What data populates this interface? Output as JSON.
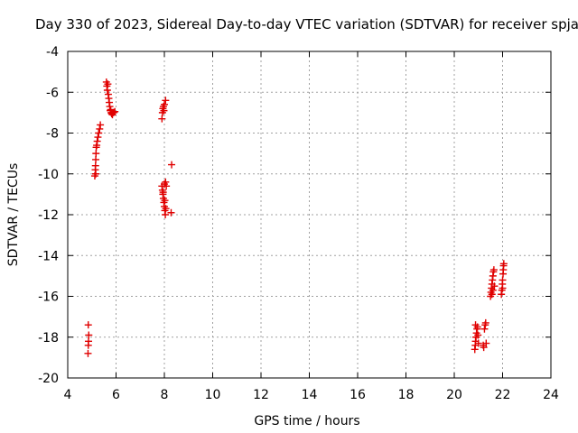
{
  "chart_data": {
    "type": "scatter",
    "title": "Day 330 of 2023, Sidereal Day-to-day VTEC variation (SDTVAR) for receiver spja",
    "xlabel": "GPS time / hours",
    "ylabel": "SDTVAR / TECUs",
    "xlim": [
      4,
      24
    ],
    "ylim": [
      -20,
      -4
    ],
    "xticks": [
      4,
      6,
      8,
      10,
      12,
      14,
      16,
      18,
      20,
      22,
      24
    ],
    "yticks": [
      -20,
      -18,
      -16,
      -14,
      -12,
      -10,
      -8,
      -6,
      -4
    ],
    "grid": true,
    "marker": "plus",
    "color": "#e00000",
    "series": [
      {
        "name": "SDTVAR",
        "points": [
          [
            4.85,
            -17.4
          ],
          [
            4.87,
            -17.9
          ],
          [
            4.86,
            -18.2
          ],
          [
            4.85,
            -18.4
          ],
          [
            4.84,
            -18.8
          ],
          [
            5.12,
            -10.1
          ],
          [
            5.14,
            -9.8
          ],
          [
            5.15,
            -9.6
          ],
          [
            5.16,
            -9.3
          ],
          [
            5.17,
            -9.0
          ],
          [
            5.18,
            -8.7
          ],
          [
            5.2,
            -8.6
          ],
          [
            5.22,
            -8.4
          ],
          [
            5.25,
            -8.2
          ],
          [
            5.28,
            -8.0
          ],
          [
            5.32,
            -7.8
          ],
          [
            5.35,
            -7.6
          ],
          [
            5.16,
            -10.0
          ],
          [
            5.6,
            -5.5
          ],
          [
            5.62,
            -5.7
          ],
          [
            5.64,
            -5.9
          ],
          [
            5.66,
            -5.6
          ],
          [
            5.68,
            -6.1
          ],
          [
            5.7,
            -6.3
          ],
          [
            5.72,
            -6.5
          ],
          [
            5.74,
            -6.7
          ],
          [
            5.76,
            -6.9
          ],
          [
            5.8,
            -7.0
          ],
          [
            5.85,
            -7.1
          ],
          [
            5.9,
            -7.0
          ],
          [
            5.95,
            -6.95
          ],
          [
            5.78,
            -6.85
          ],
          [
            5.82,
            -7.05
          ],
          [
            7.9,
            -7.3
          ],
          [
            7.92,
            -7.0
          ],
          [
            7.94,
            -6.8
          ],
          [
            7.96,
            -6.7
          ],
          [
            7.98,
            -6.9
          ],
          [
            8.0,
            -6.6
          ],
          [
            8.05,
            -6.4
          ],
          [
            7.9,
            -10.6
          ],
          [
            7.92,
            -10.8
          ],
          [
            7.94,
            -11.0
          ],
          [
            7.96,
            -11.2
          ],
          [
            7.98,
            -11.4
          ],
          [
            8.0,
            -11.6
          ],
          [
            8.02,
            -11.8
          ],
          [
            8.04,
            -12.0
          ],
          [
            8.06,
            -11.7
          ],
          [
            8.0,
            -10.5
          ],
          [
            8.05,
            -10.4
          ],
          [
            8.08,
            -10.6
          ],
          [
            7.95,
            -10.9
          ],
          [
            8.02,
            -11.3
          ],
          [
            8.28,
            -11.9
          ],
          [
            8.3,
            -9.55
          ],
          [
            20.85,
            -18.6
          ],
          [
            20.87,
            -18.4
          ],
          [
            20.88,
            -18.2
          ],
          [
            20.9,
            -18.0
          ],
          [
            20.92,
            -17.8
          ],
          [
            20.94,
            -17.6
          ],
          [
            20.96,
            -17.5
          ],
          [
            20.88,
            -17.4
          ],
          [
            20.98,
            -17.9
          ],
          [
            21.0,
            -18.3
          ],
          [
            21.2,
            -18.4
          ],
          [
            21.22,
            -18.5
          ],
          [
            21.25,
            -17.6
          ],
          [
            21.28,
            -17.4
          ],
          [
            21.3,
            -17.3
          ],
          [
            21.32,
            -18.3
          ],
          [
            21.5,
            -16.0
          ],
          [
            21.52,
            -15.8
          ],
          [
            21.54,
            -15.6
          ],
          [
            21.56,
            -15.4
          ],
          [
            21.58,
            -15.2
          ],
          [
            21.6,
            -15.0
          ],
          [
            21.62,
            -14.8
          ],
          [
            21.64,
            -14.7
          ],
          [
            21.56,
            -15.9
          ],
          [
            21.6,
            -15.7
          ],
          [
            21.66,
            -15.5
          ],
          [
            21.95,
            -15.9
          ],
          [
            21.97,
            -15.7
          ],
          [
            21.99,
            -15.4
          ],
          [
            22.0,
            -15.2
          ],
          [
            22.02,
            -14.9
          ],
          [
            22.03,
            -14.7
          ],
          [
            22.04,
            -14.5
          ],
          [
            22.05,
            -14.4
          ],
          [
            22.0,
            -15.6
          ]
        ]
      }
    ]
  }
}
